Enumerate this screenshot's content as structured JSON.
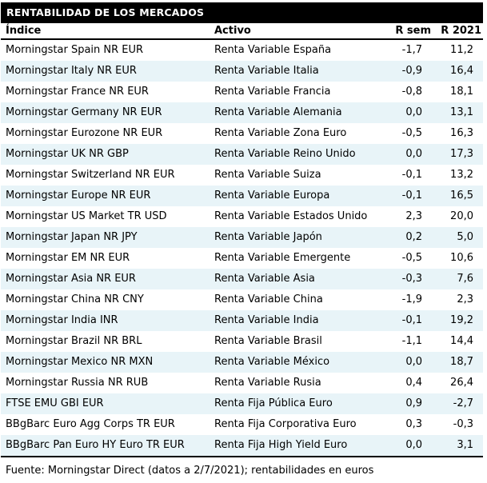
{
  "title": "RENTABILIDAD DE LOS MERCADOS",
  "footer": "Fuente: Morningstar Direct (datos a 2/7/2021); rentabilidades en euros",
  "colors": {
    "title_bar_bg": "#000000",
    "title_bar_text": "#ffffff",
    "alt_row_bg": "#e8f4f8",
    "body_text": "#000000",
    "rule": "#000000"
  },
  "chart_data": {
    "type": "table",
    "title": "RENTABILIDAD DE LOS MERCADOS",
    "columns": [
      "Índice",
      "Activo",
      "R sem",
      "R 2021"
    ],
    "rows": [
      [
        "Morningstar Spain NR EUR",
        "Renta Variable España",
        "-1,7",
        "11,2"
      ],
      [
        "Morningstar Italy NR EUR",
        "Renta Variable Italia",
        "-0,9",
        "16,4"
      ],
      [
        "Morningstar France NR EUR",
        "Renta Variable Francia",
        "-0,8",
        "18,1"
      ],
      [
        "Morningstar Germany NR EUR",
        "Renta Variable Alemania",
        "0,0",
        "13,1"
      ],
      [
        "Morningstar Eurozone NR EUR",
        "Renta Variable Zona Euro",
        "-0,5",
        "16,3"
      ],
      [
        "Morningstar UK NR GBP",
        "Renta Variable Reino Unido",
        "0,0",
        "17,3"
      ],
      [
        "Morningstar Switzerland NR EUR",
        "Renta Variable Suiza",
        "-0,1",
        "13,2"
      ],
      [
        "Morningstar Europe NR EUR",
        "Renta Variable Europa",
        "-0,1",
        "16,5"
      ],
      [
        "Morningstar US Market TR USD",
        "Renta Variable Estados Unidos",
        "2,3",
        "20,0"
      ],
      [
        "Morningstar Japan NR JPY",
        "Renta Variable Japón",
        "0,2",
        "5,0"
      ],
      [
        "Morningstar EM NR EUR",
        "Renta Variable Emergente",
        "-0,5",
        "10,6"
      ],
      [
        "Morningstar Asia NR EUR",
        "Renta Variable Asia",
        "-0,3",
        "7,6"
      ],
      [
        "Morningstar China NR CNY",
        "Renta Variable China",
        "-1,9",
        "2,3"
      ],
      [
        "Morningstar India INR",
        "Renta Variable India",
        "-0,1",
        "19,2"
      ],
      [
        "Morningstar Brazil NR BRL",
        "Renta Variable Brasil",
        "-1,1",
        "14,4"
      ],
      [
        "Morningstar Mexico NR MXN",
        "Renta Variable México",
        "0,0",
        "18,7"
      ],
      [
        "Morningstar Russia NR RUB",
        "Renta Variable Rusia",
        "0,4",
        "26,4"
      ],
      [
        "FTSE EMU GBI EUR",
        "Renta Fija Pública Euro",
        "0,9",
        "-2,7"
      ],
      [
        "BBgBarc Euro Agg Corps TR EUR",
        "Renta Fija Corporativa Euro",
        "0,3",
        "-0,3"
      ],
      [
        "BBgBarc Pan Euro HY Euro TR EUR",
        "Renta Fija High Yield Euro",
        "0,0",
        "3,1"
      ]
    ]
  }
}
